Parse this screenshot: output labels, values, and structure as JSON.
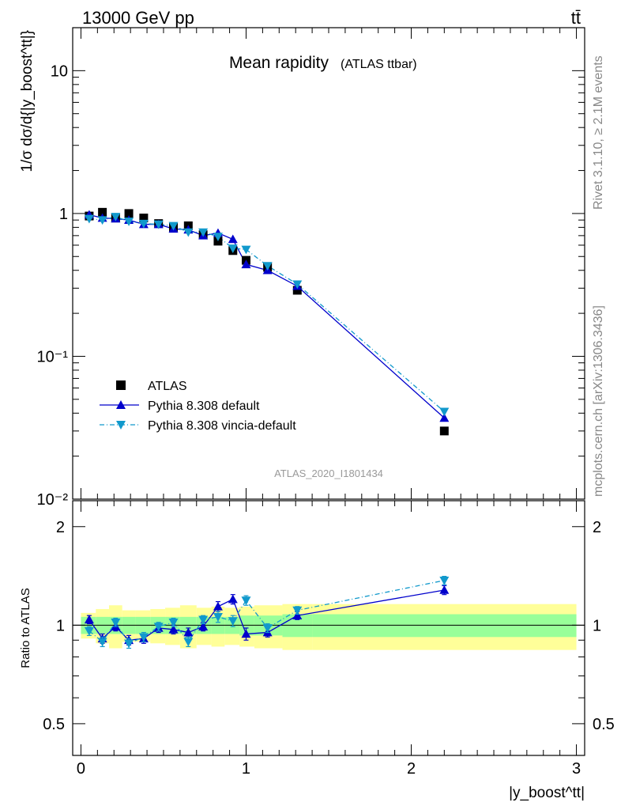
{
  "header": {
    "energy": "13000 GeV pp",
    "process": "tt̄",
    "rivet": "Rivet 3.1.10, ≥ 2.1M events",
    "mcplots": "mcplots.cern.ch [arXiv:1306.3436]",
    "analysis": "ATLAS_2020_I1801434"
  },
  "colors": {
    "atlas": "#000000",
    "pythia_default": "#0000cc",
    "pythia_vincia": "#1199cc",
    "band_inner": "#99ff99",
    "band_outer": "#ffff99"
  },
  "chart_data": [
    {
      "type": "scatter",
      "title": "Mean rapidity",
      "title_suffix": "(ATLAS ttbar)",
      "ylabel": "1/σ dσ/d{|y_boost^tt|}",
      "yscale": "log",
      "ylim": [
        0.01,
        20
      ],
      "xlim": [
        -0.05,
        3.05
      ],
      "y_ticks": [
        "10",
        "1",
        "10⁻¹",
        "10⁻²"
      ],
      "legend_position": "lower-left",
      "series": [
        {
          "name": "ATLAS",
          "marker": "square",
          "x": [
            0.05,
            0.13,
            0.21,
            0.29,
            0.38,
            0.47,
            0.56,
            0.65,
            0.74,
            0.83,
            0.92,
            1.0,
            1.13,
            1.31,
            2.2
          ],
          "y": [
            0.96,
            1.02,
            0.93,
            1.0,
            0.93,
            0.85,
            0.8,
            0.82,
            0.71,
            0.64,
            0.55,
            0.47,
            0.42,
            0.29,
            0.03
          ]
        },
        {
          "name": "Pythia 8.308 default",
          "marker": "triangle-up",
          "line": "solid",
          "x": [
            0.05,
            0.13,
            0.21,
            0.29,
            0.38,
            0.47,
            0.56,
            0.65,
            0.74,
            0.83,
            0.92,
            1.0,
            1.13,
            1.31,
            2.2
          ],
          "y": [
            0.98,
            0.93,
            0.92,
            0.9,
            0.84,
            0.84,
            0.78,
            0.77,
            0.7,
            0.73,
            0.66,
            0.44,
            0.4,
            0.31,
            0.037
          ]
        },
        {
          "name": "Pythia 8.308 vincia-default",
          "marker": "triangle-down",
          "line": "dash-dot",
          "x": [
            0.05,
            0.13,
            0.21,
            0.29,
            0.38,
            0.47,
            0.56,
            0.65,
            0.74,
            0.83,
            0.92,
            1.0,
            1.13,
            1.31,
            2.2
          ],
          "y": [
            0.92,
            0.9,
            0.95,
            0.88,
            0.85,
            0.84,
            0.82,
            0.74,
            0.74,
            0.69,
            0.57,
            0.56,
            0.43,
            0.32,
            0.041
          ]
        }
      ]
    },
    {
      "type": "scatter",
      "ylabel": "Ratio to ATLAS",
      "xlabel": "|y_boost^tt|",
      "ylim": [
        0.4,
        2.4
      ],
      "xlim": [
        -0.05,
        3.05
      ],
      "y_ticks": [
        "2",
        "1",
        "0.5"
      ],
      "x_ticks": [
        "0",
        "1",
        "2",
        "3"
      ],
      "bins": [
        [
          0.0,
          0.09
        ],
        [
          0.09,
          0.17
        ],
        [
          0.17,
          0.25
        ],
        [
          0.25,
          0.33
        ],
        [
          0.33,
          0.42
        ],
        [
          0.42,
          0.51
        ],
        [
          0.51,
          0.6
        ],
        [
          0.6,
          0.7
        ],
        [
          0.7,
          0.79
        ],
        [
          0.79,
          0.87
        ],
        [
          0.87,
          0.96
        ],
        [
          0.96,
          1.05
        ],
        [
          1.05,
          1.22
        ],
        [
          1.22,
          1.4
        ],
        [
          1.4,
          3.0
        ]
      ],
      "band_inner": [
        0.06,
        0.06,
        0.06,
        0.06,
        0.06,
        0.06,
        0.06,
        0.06,
        0.06,
        0.06,
        0.06,
        0.07,
        0.07,
        0.08,
        0.08
      ],
      "band_outer": [
        0.09,
        0.12,
        0.15,
        0.11,
        0.11,
        0.12,
        0.13,
        0.15,
        0.13,
        0.14,
        0.13,
        0.14,
        0.15,
        0.16,
        0.16
      ],
      "series": [
        {
          "name": "Pythia 8.308 default",
          "marker": "triangle-up",
          "line": "solid",
          "x": [
            0.05,
            0.13,
            0.21,
            0.29,
            0.38,
            0.47,
            0.56,
            0.65,
            0.74,
            0.83,
            0.92,
            1.0,
            1.13,
            1.31,
            2.2
          ],
          "y": [
            1.04,
            0.91,
            0.99,
            0.9,
            0.91,
            0.98,
            0.97,
            0.95,
            0.99,
            1.14,
            1.2,
            0.94,
            0.95,
            1.07,
            1.28
          ],
          "err": [
            0.03,
            0.03,
            0.03,
            0.03,
            0.03,
            0.03,
            0.03,
            0.03,
            0.03,
            0.04,
            0.04,
            0.04,
            0.03,
            0.03,
            0.04
          ]
        },
        {
          "name": "Pythia 8.308 vincia-default",
          "marker": "triangle-down",
          "line": "dash-dot",
          "x": [
            0.05,
            0.13,
            0.21,
            0.29,
            0.38,
            0.47,
            0.56,
            0.65,
            0.74,
            0.83,
            0.92,
            1.0,
            1.13,
            1.31,
            2.2
          ],
          "y": [
            0.96,
            0.89,
            1.02,
            0.88,
            0.92,
            0.99,
            1.02,
            0.89,
            1.04,
            1.06,
            1.03,
            1.19,
            0.98,
            1.11,
            1.37
          ],
          "err": [
            0.03,
            0.03,
            0.03,
            0.03,
            0.03,
            0.03,
            0.03,
            0.03,
            0.03,
            0.04,
            0.04,
            0.04,
            0.03,
            0.03,
            0.04
          ]
        }
      ]
    }
  ]
}
